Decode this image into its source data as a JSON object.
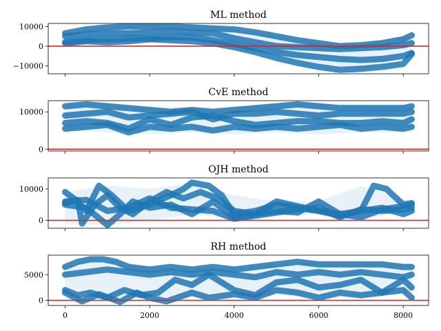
{
  "colors": {
    "trace": "#1f77b4",
    "zero_line": "#d62728",
    "axes": "#000000"
  },
  "chart_data": [
    {
      "type": "line",
      "title": "ML method",
      "xlim": [
        -400,
        8600
      ],
      "ylim": [
        -14000,
        11500
      ],
      "xticks": [],
      "yticks": [
        10000,
        0,
        -10000
      ],
      "ytick_labels": [
        "10000",
        "0",
        "−10000"
      ],
      "hline": 0,
      "band": {
        "x": [
          0,
          1000,
          2000,
          3000,
          4000,
          5000,
          6000,
          7000,
          8200
        ],
        "upper": [
          7000,
          10000,
          11000,
          11000,
          9000,
          5000,
          2000,
          1000,
          6000
        ],
        "lower": [
          1000,
          1500,
          2000,
          2500,
          0,
          -5000,
          -9000,
          -12000,
          -4000
        ]
      },
      "series": [
        {
          "x": [
            0,
            500,
            1000,
            1500,
            2000,
            2500,
            3000,
            3500,
            4000,
            4500,
            5000,
            5500,
            6000,
            6500,
            7000,
            7500,
            8000,
            8200
          ],
          "values": [
            6500,
            8500,
            9500,
            10000,
            10000,
            10000,
            9500,
            9000,
            8500,
            7000,
            5000,
            3000,
            1500,
            0,
            500,
            1500,
            3500,
            5500
          ]
        },
        {
          "x": [
            0,
            500,
            1000,
            1500,
            2000,
            2500,
            3000,
            3500,
            4000,
            4500,
            5000,
            5500,
            6000,
            6500,
            7000,
            7500,
            8000,
            8200
          ],
          "values": [
            5000,
            6000,
            6500,
            6500,
            7000,
            7500,
            7000,
            6500,
            4000,
            2000,
            0,
            -500,
            -1000,
            -1500,
            -1000,
            -500,
            500,
            1500
          ]
        },
        {
          "x": [
            0,
            500,
            1000,
            1500,
            2000,
            2500,
            3000,
            3500,
            4000,
            4500,
            5000,
            5500,
            6000,
            6500,
            7000,
            7500,
            8000,
            8200
          ],
          "values": [
            2000,
            3000,
            3500,
            4000,
            4000,
            4500,
            4500,
            3000,
            1000,
            -1000,
            -3000,
            -4500,
            -5500,
            -6500,
            -7000,
            -6500,
            -5000,
            -3500
          ]
        },
        {
          "x": [
            0,
            500,
            1000,
            1500,
            2000,
            2500,
            3000,
            3500,
            4000,
            4500,
            5000,
            5500,
            6000,
            6500,
            7000,
            7500,
            8000,
            8200
          ],
          "values": [
            1500,
            2500,
            2000,
            2500,
            3500,
            3000,
            2500,
            1500,
            -500,
            -3000,
            -6000,
            -8500,
            -10500,
            -12000,
            -11500,
            -10500,
            -9000,
            -4000
          ]
        }
      ]
    },
    {
      "type": "line",
      "title": "CvE method",
      "xlim": [
        -400,
        8600
      ],
      "ylim": [
        -500,
        13000
      ],
      "xticks": [],
      "yticks": [
        10000,
        0
      ],
      "ytick_labels": [
        "10000",
        "0"
      ],
      "hline": 0,
      "band": {
        "x": [
          0,
          1000,
          2000,
          3000,
          4000,
          5000,
          6000,
          7000,
          8200
        ],
        "upper": [
          12000,
          12500,
          11500,
          11000,
          11500,
          12000,
          12500,
          12000,
          12000
        ],
        "lower": [
          5000,
          4500,
          4000,
          4500,
          4000,
          4500,
          4000,
          4500,
          4500
        ]
      },
      "series": [
        {
          "x": [
            0,
            500,
            1000,
            1500,
            2000,
            2500,
            3000,
            3500,
            4000,
            4500,
            5000,
            5500,
            6000,
            6500,
            7000,
            7500,
            8000,
            8200
          ],
          "values": [
            11500,
            12000,
            11500,
            11000,
            10500,
            10000,
            10500,
            10000,
            10500,
            11000,
            11500,
            12000,
            11500,
            11000,
            11000,
            11000,
            11000,
            11500
          ]
        },
        {
          "x": [
            0,
            500,
            1000,
            1500,
            2000,
            2500,
            3000,
            3500,
            4000,
            4500,
            5000,
            5500,
            6000,
            6500,
            7000,
            7500,
            8000,
            8200
          ],
          "values": [
            9000,
            9500,
            10000,
            8500,
            9000,
            9500,
            10000,
            8000,
            9500,
            9500,
            10000,
            9500,
            9000,
            9500,
            9500,
            9500,
            9500,
            10000
          ]
        },
        {
          "x": [
            0,
            500,
            1000,
            1500,
            2000,
            2500,
            3000,
            3500,
            4000,
            4500,
            5000,
            5500,
            6000,
            6500,
            7000,
            7500,
            8000,
            8200
          ],
          "values": [
            7000,
            7500,
            7000,
            5500,
            8000,
            6500,
            8500,
            9000,
            7500,
            6500,
            7000,
            7500,
            7500,
            7000,
            7000,
            7500,
            7000,
            8000
          ]
        },
        {
          "x": [
            0,
            500,
            1000,
            1500,
            2000,
            2500,
            3000,
            3500,
            4000,
            4500,
            5000,
            5500,
            6000,
            6500,
            7000,
            7500,
            8000,
            8200
          ],
          "values": [
            5500,
            6000,
            6500,
            4500,
            6000,
            5500,
            6000,
            5000,
            6000,
            5500,
            6000,
            5500,
            6000,
            6500,
            5500,
            6000,
            5500,
            6000
          ]
        }
      ]
    },
    {
      "type": "line",
      "title": "OJH method",
      "xlim": [
        -400,
        8600
      ],
      "ylim": [
        -2500,
        13500
      ],
      "xticks": [],
      "yticks": [
        10000,
        0
      ],
      "ytick_labels": [
        "10000",
        "0"
      ],
      "hline": 0,
      "band": {
        "x": [
          0,
          1000,
          2000,
          3000,
          4000,
          5000,
          6000,
          7000,
          8200
        ],
        "upper": [
          9000,
          11000,
          10000,
          12000,
          8000,
          6000,
          6000,
          11000,
          6000
        ],
        "lower": [
          -1000,
          -1500,
          0,
          2000,
          500,
          1500,
          2000,
          500,
          3000
        ]
      },
      "series": [
        {
          "x": [
            0,
            300,
            500,
            800,
            1100,
            1500,
            2000,
            2500,
            2800,
            3000,
            3400,
            3700,
            4000,
            4500,
            5000,
            5500,
            6000,
            6500,
            7000,
            7300,
            7600,
            8000,
            8200
          ],
          "values": [
            9000,
            6000,
            3000,
            11000,
            8000,
            3000,
            5000,
            8000,
            10000,
            12000,
            11000,
            8000,
            2000,
            3000,
            5000,
            4000,
            3000,
            2000,
            3000,
            11000,
            10000,
            5000,
            5500
          ]
        },
        {
          "x": [
            0,
            300,
            400,
            700,
            1000,
            1300,
            1600,
            2000,
            2400,
            2800,
            3200,
            3600,
            4000,
            4500,
            5000,
            5500,
            6000,
            6500,
            7000,
            7500,
            8000,
            8200
          ],
          "values": [
            5500,
            6500,
            -1000,
            5000,
            8000,
            4000,
            2000,
            6000,
            9000,
            7000,
            9000,
            7000,
            3000,
            2000,
            6000,
            4500,
            3000,
            1500,
            3000,
            4000,
            2000,
            3000
          ]
        },
        {
          "x": [
            0,
            500,
            1000,
            1300,
            1600,
            2000,
            2500,
            3000,
            3500,
            4000,
            4500,
            5000,
            5500,
            6000,
            6500,
            7000,
            7500,
            8000,
            8200
          ],
          "values": [
            5000,
            4000,
            -1500,
            2000,
            6000,
            4000,
            5000,
            2000,
            6000,
            1000,
            2000,
            3000,
            2500,
            6000,
            2000,
            1000,
            3500,
            4500,
            5000
          ]
        },
        {
          "x": [
            0,
            500,
            1000,
            1500,
            2000,
            2500,
            3000,
            3500,
            4000,
            4500,
            5000,
            5500,
            6000,
            6500,
            7000,
            7500,
            8000,
            8200
          ],
          "values": [
            6000,
            6500,
            3000,
            4000,
            7000,
            4000,
            3500,
            3000,
            500,
            1500,
            2500,
            3500,
            4000,
            1000,
            3500,
            3000,
            3500,
            4000
          ]
        }
      ]
    },
    {
      "type": "line",
      "title": "RH method",
      "xlim": [
        -400,
        8600
      ],
      "ylim": [
        -1000,
        8800
      ],
      "xticks": [
        0,
        2000,
        4000,
        6000,
        8000
      ],
      "xtick_labels": [
        "0",
        "2000",
        "4000",
        "6000",
        "8000"
      ],
      "yticks": [
        5000,
        0
      ],
      "ytick_labels": [
        "5000",
        "0"
      ],
      "hline": 0,
      "band": {
        "x": [
          0,
          1000,
          2000,
          3000,
          4000,
          5000,
          6000,
          7000,
          8200
        ],
        "upper": [
          6800,
          8000,
          6500,
          6500,
          6500,
          7000,
          7500,
          7500,
          7000
        ],
        "lower": [
          2500,
          500,
          500,
          500,
          500,
          1000,
          500,
          500,
          1500
        ]
      },
      "series": [
        {
          "x": [
            0,
            300,
            600,
            900,
            1200,
            1500,
            2000,
            2500,
            3000,
            3500,
            4000,
            4500,
            5000,
            5500,
            6000,
            6500,
            7000,
            7500,
            8000,
            8200
          ],
          "values": [
            6500,
            7500,
            8000,
            8000,
            7500,
            6500,
            6000,
            6500,
            6000,
            6500,
            6000,
            6500,
            7000,
            7500,
            7000,
            7000,
            7000,
            7000,
            6500,
            6500
          ]
        },
        {
          "x": [
            0,
            500,
            1000,
            1500,
            2000,
            2500,
            3000,
            3500,
            4000,
            4500,
            5000,
            5500,
            6000,
            6500,
            7000,
            7500,
            8000,
            8200
          ],
          "values": [
            5000,
            5500,
            6000,
            5500,
            5000,
            5500,
            5000,
            5500,
            5000,
            4500,
            5500,
            5000,
            5500,
            5000,
            5500,
            5000,
            4500,
            5000
          ]
        },
        {
          "x": [
            0,
            300,
            600,
            1000,
            1400,
            1800,
            2200,
            2600,
            3000,
            3400,
            4000,
            4500,
            5000,
            5500,
            6000,
            6500,
            7000,
            7500,
            8000,
            8200
          ],
          "values": [
            2000,
            1000,
            1500,
            500,
            2000,
            1000,
            1500,
            4000,
            3000,
            5000,
            2000,
            1000,
            3500,
            4000,
            2500,
            3000,
            4000,
            1500,
            4000,
            2500
          ]
        },
        {
          "x": [
            0,
            400,
            800,
            1300,
            1700,
            2000,
            2400,
            3000,
            3400,
            4000,
            4500,
            5000,
            5500,
            6000,
            6500,
            7000,
            7500,
            8000,
            8200
          ],
          "values": [
            1500,
            -200,
            1200,
            -300,
            1500,
            500,
            -200,
            1500,
            500,
            1200,
            500,
            2000,
            1500,
            500,
            1500,
            1000,
            1500,
            2000,
            500
          ]
        }
      ]
    }
  ]
}
